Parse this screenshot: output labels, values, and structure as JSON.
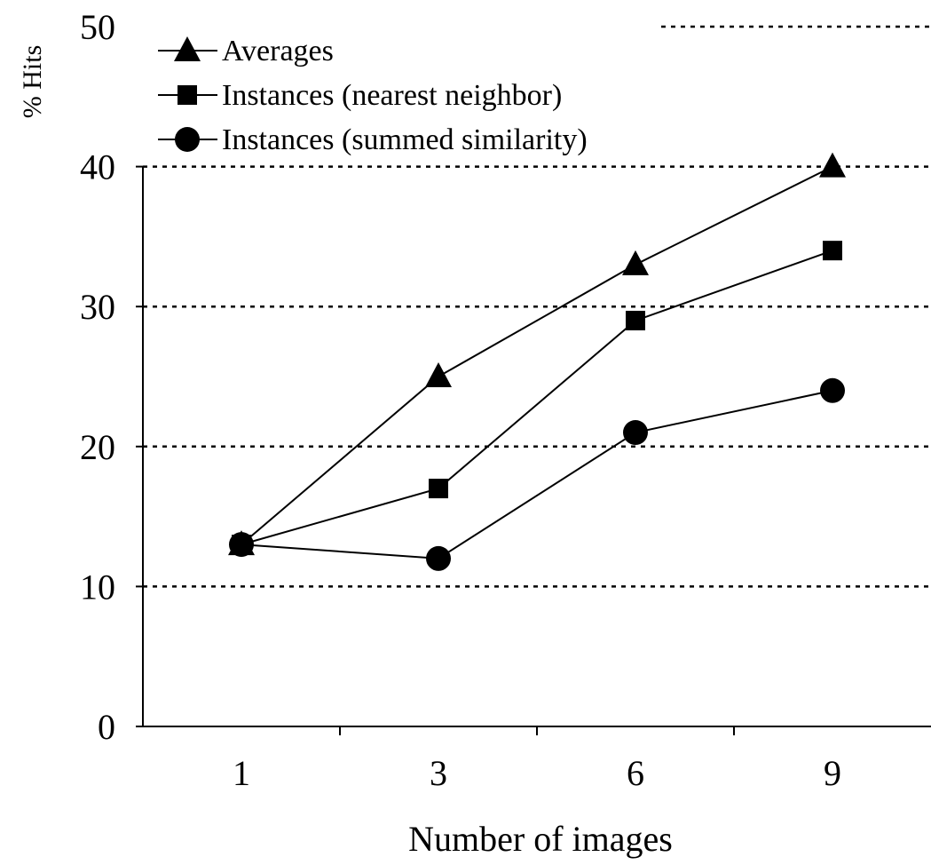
{
  "chart_data": {
    "type": "line",
    "title": "",
    "xlabel": "Number of images",
    "ylabel": "% Hits",
    "categories": [
      "1",
      "3",
      "6",
      "9"
    ],
    "yticks": [
      "0",
      "10",
      "20",
      "30",
      "40",
      "50"
    ],
    "ylim": [
      0,
      50
    ],
    "grid": "horizontal dotted",
    "legend_position": "top-left",
    "series": [
      {
        "name": "Averages",
        "marker": "triangle",
        "values": [
          13,
          25,
          33,
          40
        ]
      },
      {
        "name": "Instances (nearest neighbor)",
        "marker": "square",
        "values": [
          13,
          17,
          29,
          34
        ]
      },
      {
        "name": "Instances (summed similarity)",
        "marker": "circle",
        "values": [
          13,
          12,
          21,
          24
        ]
      }
    ],
    "colors": {
      "line": "#000000",
      "marker": "#000000",
      "grid": "#000000",
      "background": "#ffffff"
    }
  }
}
